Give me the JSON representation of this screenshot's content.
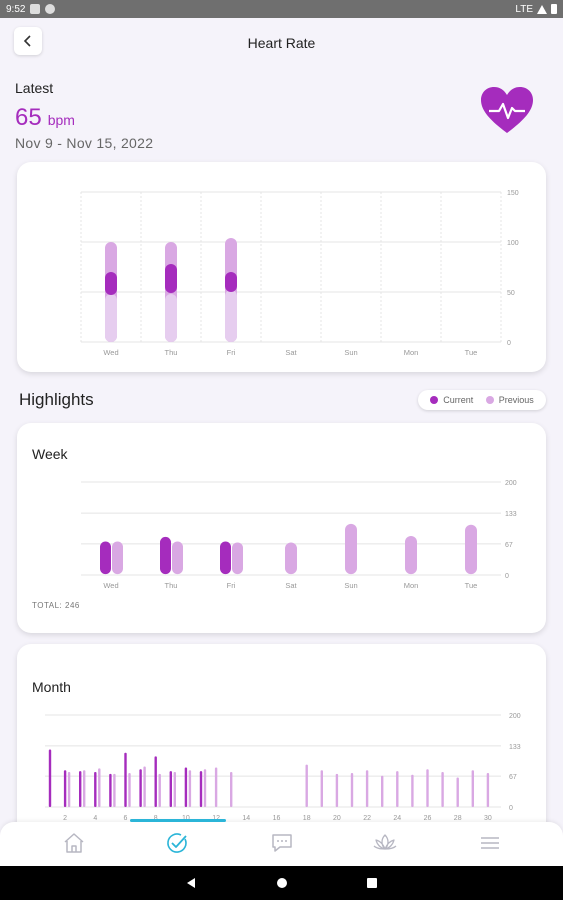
{
  "status_bar": {
    "time": "9:52",
    "network": "LTE"
  },
  "header": {
    "title": "Heart Rate",
    "back_icon": "chevron-left-icon"
  },
  "latest": {
    "label": "Latest",
    "value": "65",
    "unit": "bpm",
    "date_range": "Nov 9 - Nov 15, 2022",
    "badge_icon": "heart-pulse-icon"
  },
  "colors": {
    "current": "#a52cbd",
    "previous": "#d9a8e3",
    "range_light": "#e6cdef",
    "grid": "#e4e4e4",
    "accent_nav": "#2bb5d8"
  },
  "daily_chart": {
    "chart_data": {
      "type": "bar",
      "title": "",
      "categories": [
        "Wed",
        "Thu",
        "Fri",
        "Sat",
        "Sun",
        "Mon",
        "Tue"
      ],
      "yticks": [
        "150",
        "100",
        "50",
        "0"
      ],
      "ylim": [
        0,
        150
      ],
      "series": [
        {
          "name": "range",
          "values": [
            [
              0,
              100
            ],
            [
              0,
              100
            ],
            [
              0,
              104
            ],
            null,
            null,
            null,
            null
          ]
        },
        {
          "name": "lower",
          "values": [
            [
              0,
              48
            ],
            [
              0,
              48
            ],
            [
              0,
              52
            ],
            null,
            null,
            null,
            null
          ]
        },
        {
          "name": "current",
          "values": [
            [
              47,
              70
            ],
            [
              49,
              78
            ],
            [
              50,
              70
            ],
            null,
            null,
            null,
            null
          ]
        }
      ]
    }
  },
  "highlights": {
    "title": "Highlights",
    "legend": {
      "current": "Current",
      "previous": "Previous"
    }
  },
  "week_card": {
    "title": "Week",
    "total_label": "TOTAL: 246",
    "chart_data": {
      "type": "bar",
      "categories": [
        "Wed",
        "Thu",
        "Fri",
        "Sat",
        "Sun",
        "Mon",
        "Tue"
      ],
      "yticks": [
        "200",
        "133",
        "67",
        "0"
      ],
      "ylim": [
        0,
        200
      ],
      "series": [
        {
          "name": "Current",
          "values": [
            [
              2,
              72
            ],
            [
              2,
              82
            ],
            [
              2,
              72
            ],
            null,
            null,
            null,
            null
          ]
        },
        {
          "name": "Previous",
          "values": [
            [
              2,
              72
            ],
            [
              2,
              72
            ],
            [
              2,
              70
            ],
            [
              2,
              70
            ],
            [
              2,
              110
            ],
            [
              2,
              84
            ],
            [
              2,
              108
            ]
          ]
        }
      ]
    }
  },
  "month_card": {
    "title": "Month",
    "chart_data": {
      "type": "bar",
      "yticks": [
        "200",
        "133",
        "67",
        "0"
      ],
      "ylim": [
        0,
        200
      ],
      "xticks": [
        "2",
        "4",
        "6",
        "8",
        "10",
        "12",
        "14",
        "16",
        "18",
        "20",
        "22",
        "24",
        "26",
        "28",
        "30"
      ],
      "series": [
        {
          "name": "Current",
          "values": [
            125,
            80,
            78,
            76,
            72,
            118,
            82,
            110,
            78,
            86,
            78,
            null,
            null,
            null,
            null,
            null,
            null,
            null,
            null,
            null,
            null,
            null,
            null,
            null,
            null,
            null,
            null,
            null,
            null,
            null
          ]
        },
        {
          "name": "Previous",
          "values": [
            null,
            76,
            80,
            84,
            72,
            74,
            88,
            72,
            76,
            80,
            82,
            86,
            76,
            null,
            null,
            null,
            null,
            92,
            80,
            72,
            74,
            80,
            68,
            78,
            70,
            82,
            76,
            64,
            80,
            74
          ]
        }
      ]
    }
  },
  "bottom_nav": {
    "items": [
      {
        "name": "home",
        "icon": "home-icon"
      },
      {
        "name": "progress",
        "icon": "check-circle-icon"
      },
      {
        "name": "messages",
        "icon": "chat-icon"
      },
      {
        "name": "mindfulness",
        "icon": "lotus-icon"
      },
      {
        "name": "menu",
        "icon": "hamburger-menu-icon"
      }
    ]
  }
}
